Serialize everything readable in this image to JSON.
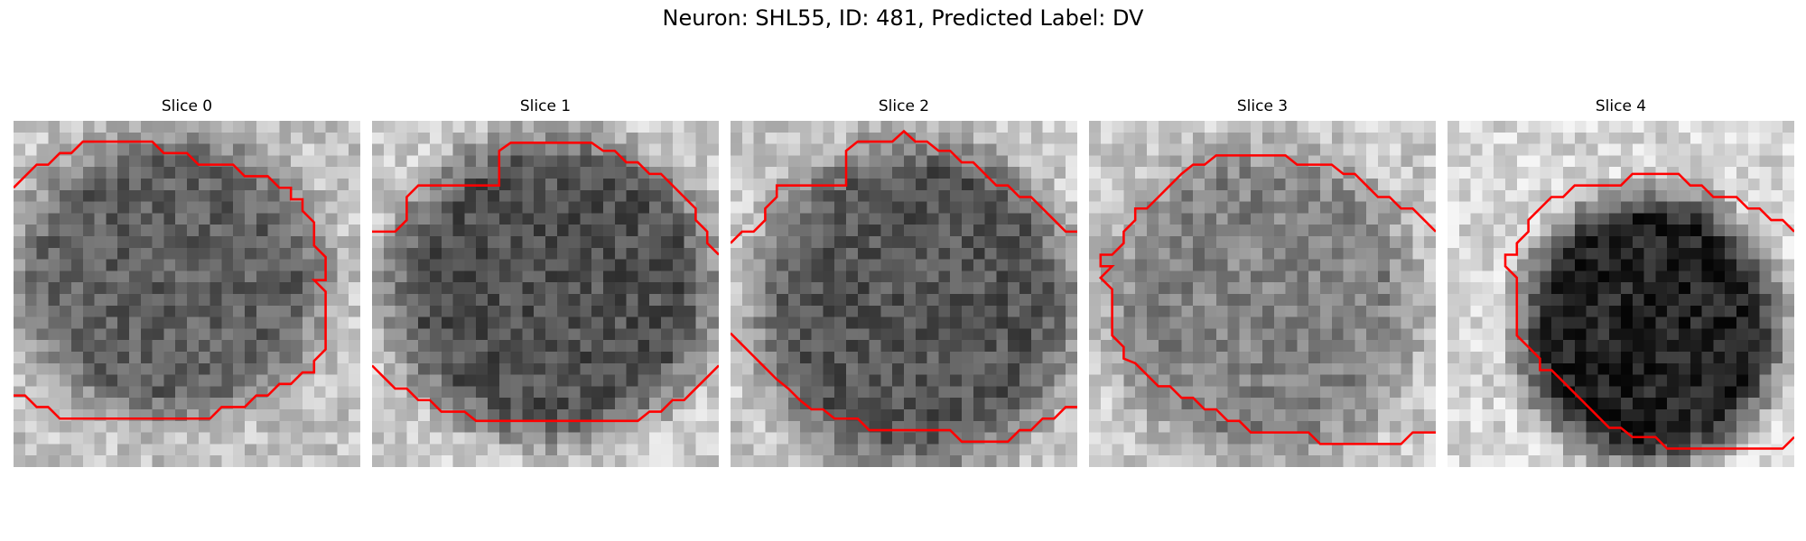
{
  "figure": {
    "title": "Neuron: SHL55, ID: 481, Predicted Label: DV"
  },
  "panels": [
    {
      "title": "Slice 0",
      "profile": "slice0"
    },
    {
      "title": "Slice 1",
      "profile": "slice1"
    },
    {
      "title": "Slice 2",
      "profile": "slice2"
    },
    {
      "title": "Slice 3",
      "profile": "slice3"
    },
    {
      "title": "Slice 4",
      "profile": "slice4"
    }
  ],
  "colors": {
    "contour": "#ff0000",
    "background": "#ffffff"
  }
}
